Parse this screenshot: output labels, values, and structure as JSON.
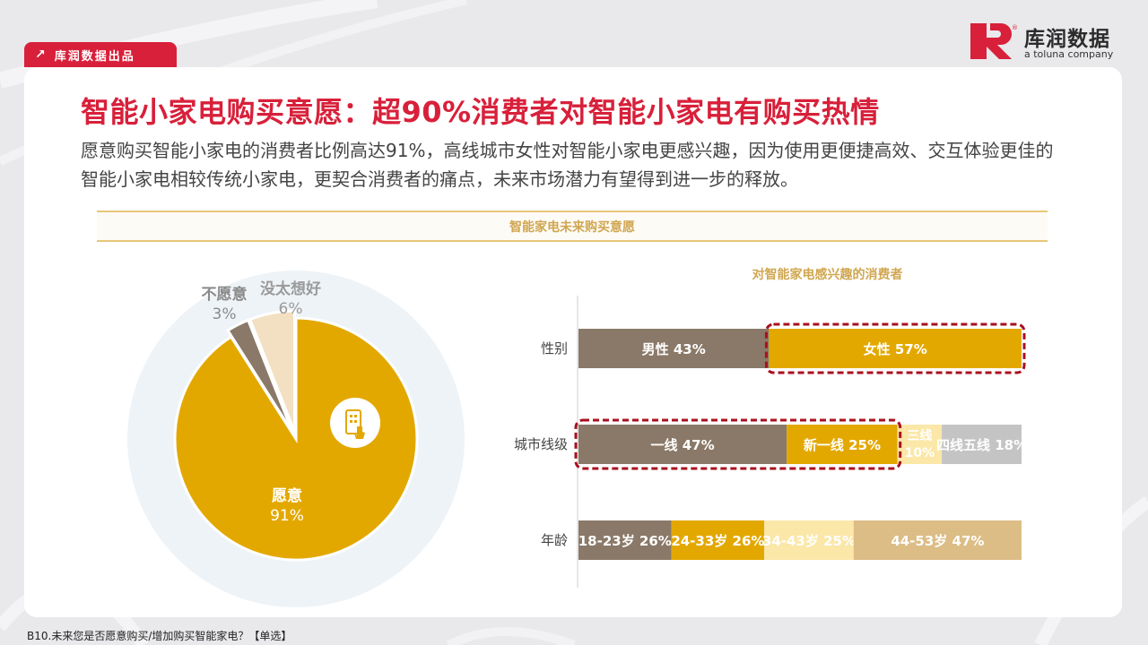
{
  "brand": {
    "name": "库润数据",
    "subtitle": "a toluna company",
    "source_tag": "库润数据出品"
  },
  "colors": {
    "accent_red": "#d8203a",
    "gold": "#e3a800",
    "taupe": "#8a7968",
    "light_yellow": "#fbe7a8",
    "tan": "#dcbd86",
    "grey": "#c4c4c4",
    "cream": "#f3e0c2"
  },
  "title": "智能小家电购买意愿：超90%消费者对智能小家电有购买热情",
  "description": "愿意购买智能小家电的消费者比例高达91%，高线城市女性对智能小家电更感兴趣，因为使用更便捷高效、交互体验更佳的智能小家电相较传统小家电，更契合消费者的痛点，未来市场潜力有望得到进一步的释放。",
  "section_header": "智能家电未来购买意愿",
  "footnote": "B10.未来您是否愿意购买/增加购买智能家电？【单选】",
  "chart_data": [
    {
      "type": "pie",
      "slices": [
        {
          "label": "愿意",
          "value": 91,
          "display": "91%",
          "color": "#e3a800"
        },
        {
          "label": "不愿意",
          "value": 3,
          "display": "3%",
          "color": "#8a7968"
        },
        {
          "label": "没太想好",
          "value": 6,
          "display": "6%",
          "color": "#f3e0c2"
        }
      ]
    },
    {
      "type": "bar",
      "stacked": true,
      "orientation": "horizontal",
      "title": "对智能家电感兴趣的消费者",
      "rows": [
        {
          "category": "性别",
          "segments": [
            {
              "label": "男性",
              "value": 43,
              "display": "43%",
              "color": "#8a7968",
              "text_color": "#ffffff"
            },
            {
              "label": "女性",
              "value": 57,
              "display": "57%",
              "color": "#e3a800",
              "text_color": "#ffffff",
              "highlight": true
            }
          ]
        },
        {
          "category": "城市线级",
          "segments": [
            {
              "label": "一线",
              "value": 47,
              "display": "47%",
              "color": "#8a7968",
              "text_color": "#ffffff",
              "highlight": true
            },
            {
              "label": "新一线",
              "value": 25,
              "display": "25%",
              "color": "#e3a800",
              "text_color": "#ffffff",
              "highlight": true
            },
            {
              "label": "三线",
              "value": 10,
              "display": "10%",
              "color": "#fbe7a8",
              "text_color": "#ffffff"
            },
            {
              "label": "四线五线",
              "value": 18,
              "display": "18%",
              "color": "#c4c4c4",
              "text_color": "#ffffff"
            }
          ]
        },
        {
          "category": "年龄",
          "segments": [
            {
              "label": "18-23岁",
              "value": 26,
              "display": "26%",
              "color": "#8a7968",
              "text_color": "#ffffff"
            },
            {
              "label": "24-33岁",
              "value": 26,
              "display": "26%",
              "color": "#e3a800",
              "text_color": "#ffffff"
            },
            {
              "label": "34-43岁",
              "value": 25,
              "display": "25%",
              "color": "#fbe7a8",
              "text_color": "#ffffff"
            },
            {
              "label": "44-53岁",
              "value": 47,
              "display": "47%",
              "color": "#dcbd86",
              "text_color": "#ffffff"
            }
          ]
        }
      ]
    }
  ]
}
